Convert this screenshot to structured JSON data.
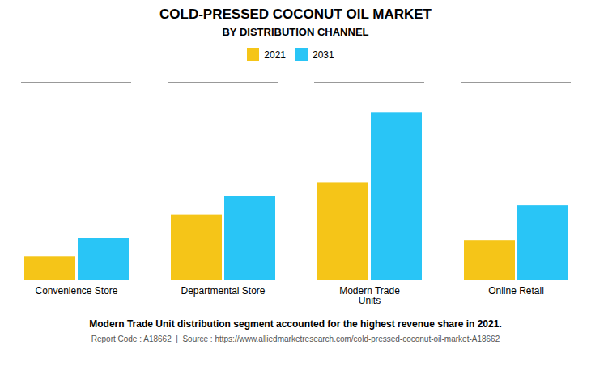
{
  "chart_data": {
    "type": "bar",
    "title": "COLD-PRESSED COCONUT OIL MARKET",
    "subtitle": "BY DISTRIBUTION CHANNEL",
    "categories": [
      "Convenience Store",
      "Departmental Store",
      "Modern Trade\nUnits",
      "Online Retail"
    ],
    "series": [
      {
        "name": "2021",
        "color": "#F5C518",
        "values": [
          1.0,
          2.8,
          4.2,
          1.7
        ]
      },
      {
        "name": "2031",
        "color": "#29C5F6",
        "values": [
          1.8,
          3.6,
          7.2,
          3.2
        ]
      }
    ],
    "ylim": [
      0,
      8.5
    ],
    "yticks": [],
    "grid": false,
    "tick_labels": "x",
    "legend": "top",
    "caption": "Modern Trade Unit distribution segment accounted for the highest revenue share in 2021.",
    "source": "Report Code : A18662  |  Source : https://www.alliedmarketresearch.com/cold-pressed-coconut-oil-market-A18662"
  }
}
